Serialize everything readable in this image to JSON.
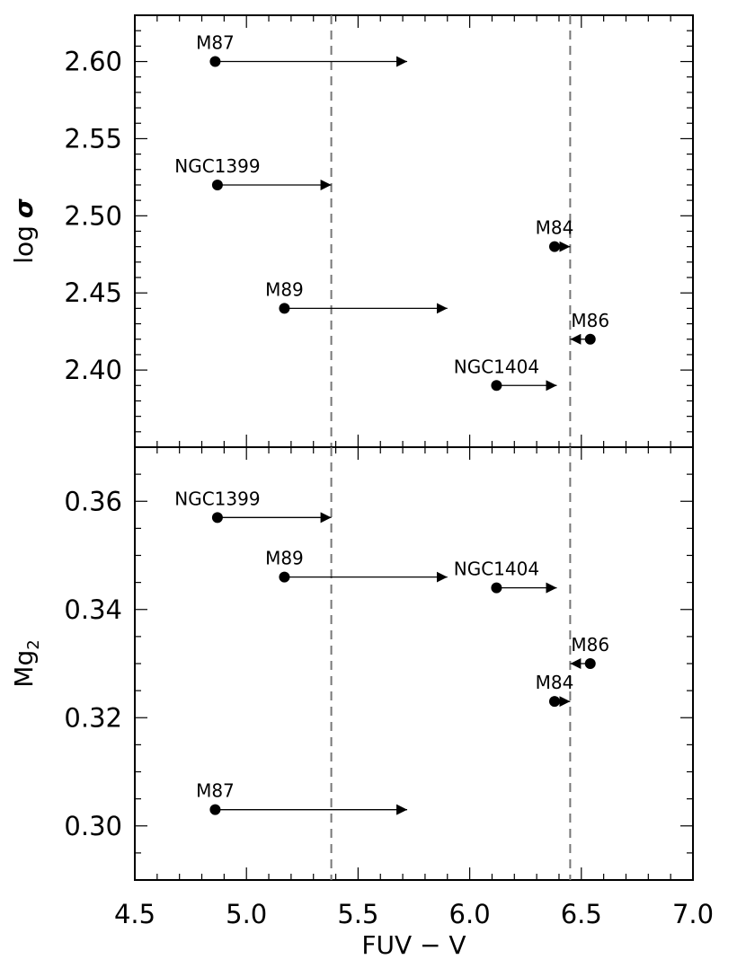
{
  "chart_data": [
    {
      "type": "scatter",
      "panel": "top",
      "xlabel": "",
      "ylabel_main": "log",
      "ylabel_symbol": "σ",
      "xlim": [
        4.5,
        7.0
      ],
      "ylim": [
        2.35,
        2.63
      ],
      "yticks": [
        "2.40",
        "2.45",
        "2.50",
        "2.55",
        "2.60"
      ],
      "vlines": [
        5.38,
        6.45
      ],
      "points": [
        {
          "name": "M87",
          "x": 4.86,
          "y": 2.6,
          "arrow_to": 5.72
        },
        {
          "name": "NGC1399",
          "x": 4.87,
          "y": 2.52,
          "arrow_to": 5.38
        },
        {
          "name": "M84",
          "x": 6.38,
          "y": 2.48,
          "arrow_to": 6.45
        },
        {
          "name": "M89",
          "x": 5.17,
          "y": 2.44,
          "arrow_to": 5.9
        },
        {
          "name": "M86",
          "x": 6.54,
          "y": 2.42,
          "arrow_to": 6.45
        },
        {
          "name": "NGC1404",
          "x": 6.12,
          "y": 2.39,
          "arrow_to": 6.39
        }
      ]
    },
    {
      "type": "scatter",
      "panel": "bottom",
      "xlabel": "FUV − V",
      "ylabel_main": "Mg",
      "ylabel_sub": "2",
      "xlim": [
        4.5,
        7.0
      ],
      "ylim": [
        0.29,
        0.37
      ],
      "xticks": [
        "4.5",
        "5.0",
        "5.5",
        "6.0",
        "6.5",
        "7.0"
      ],
      "yticks": [
        "0.30",
        "0.32",
        "0.34",
        "0.36"
      ],
      "vlines": [
        5.38,
        6.45
      ],
      "points": [
        {
          "name": "NGC1399",
          "x": 4.87,
          "y": 0.357,
          "arrow_to": 5.38
        },
        {
          "name": "M89",
          "x": 5.17,
          "y": 0.346,
          "arrow_to": 5.9
        },
        {
          "name": "NGC1404",
          "x": 6.12,
          "y": 0.344,
          "arrow_to": 6.39
        },
        {
          "name": "M86",
          "x": 6.54,
          "y": 0.33,
          "arrow_to": 6.45
        },
        {
          "name": "M84",
          "x": 6.38,
          "y": 0.323,
          "arrow_to": 6.45
        },
        {
          "name": "M87",
          "x": 4.86,
          "y": 0.303,
          "arrow_to": 5.72
        }
      ]
    }
  ]
}
